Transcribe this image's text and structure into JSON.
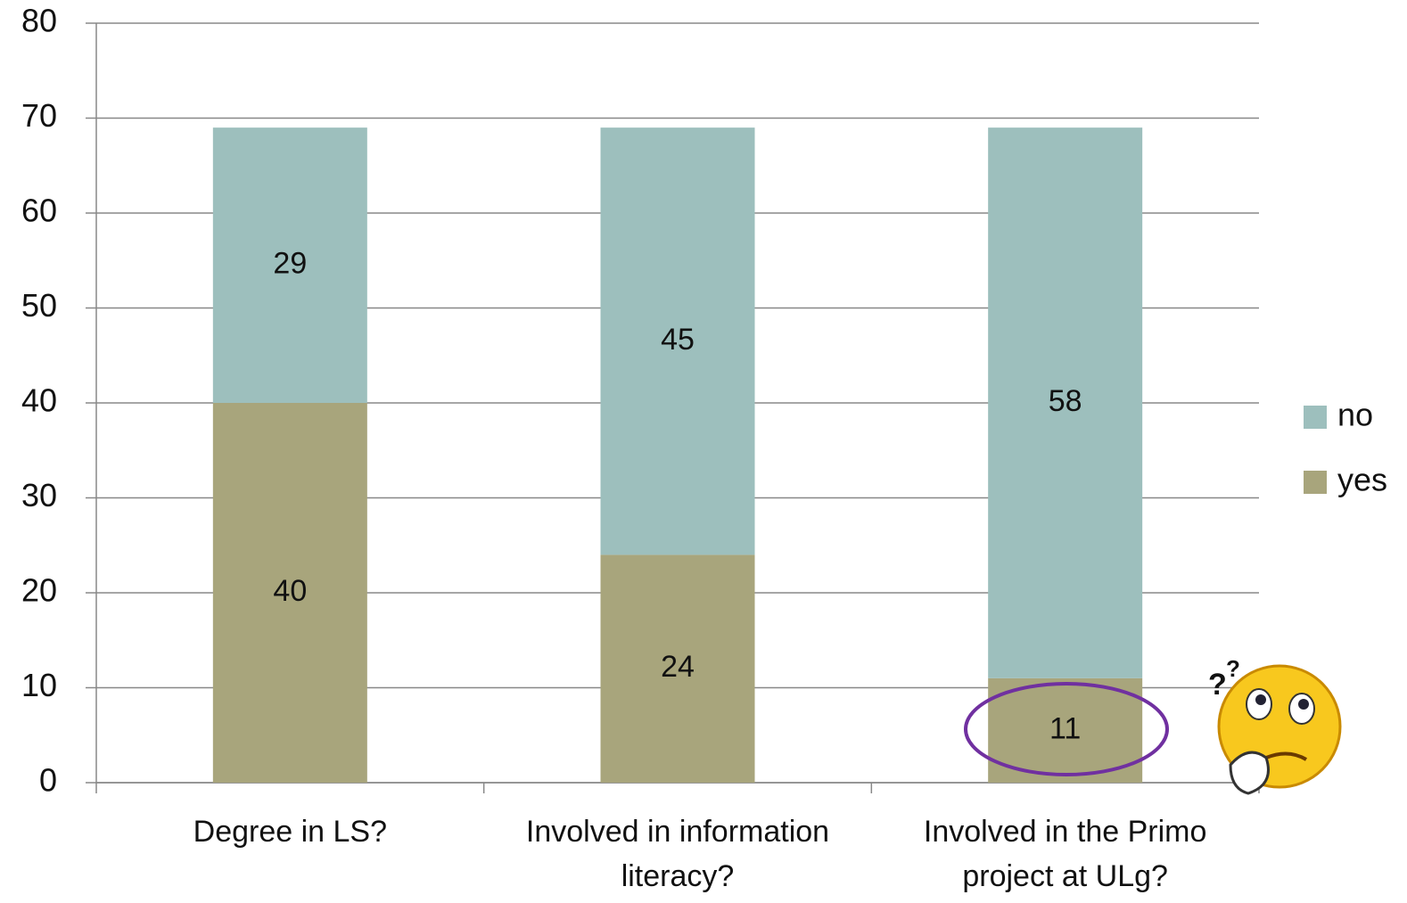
{
  "chart_data": {
    "type": "bar",
    "stacked": true,
    "categories": [
      "Degree in LS?",
      "Involved in information literacy?",
      "Involved in the Primo project at ULg?"
    ],
    "series": [
      {
        "name": "yes",
        "color": "#a8a57c",
        "values": [
          40,
          24,
          11
        ]
      },
      {
        "name": "no",
        "color": "#9dbfbd",
        "values": [
          29,
          45,
          58
        ]
      }
    ],
    "ylim": [
      0,
      80
    ],
    "yticks": [
      0,
      10,
      20,
      30,
      40,
      50,
      60,
      70,
      80
    ],
    "grid": true,
    "legend": "right"
  }
}
